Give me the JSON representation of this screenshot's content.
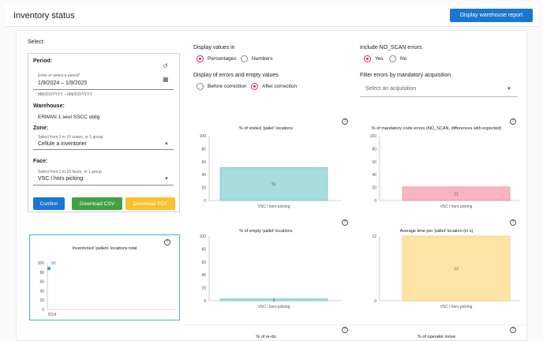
{
  "header": {
    "title": "Inventory status",
    "report_button": "Display warehouse report"
  },
  "filters": {
    "select_label": "Select:",
    "period": {
      "title": "Period:",
      "hint": "Enter or select a period*",
      "value": "1/9/2024 – 1/9/2025",
      "format": "MM/DD/YYYY – MM/DD/YYYY"
    },
    "warehouse": {
      "title": "Warehouse:",
      "value": "ERWAN 1 seul SSCC oblig"
    },
    "zone": {
      "title": "Zone:",
      "hint": "Select from 1 to 10 zones, or 1 group",
      "value": "Cellule a inventorier"
    },
    "face": {
      "title": "Face:",
      "hint": "Select from 1 to 10 faces, or 1 group",
      "value": "VSC l hors picking"
    },
    "buttons": {
      "confirm": "Confirm",
      "csv": "Download CSV",
      "pdf": "Download PDF"
    }
  },
  "options": {
    "display_values": {
      "title": "Display values in",
      "options": [
        "Percentages",
        "Numbers"
      ],
      "selected": 0
    },
    "errors_display": {
      "title": "Display of errors and empty values",
      "options": [
        "Before correction",
        "After correction"
      ],
      "selected": 1
    },
    "no_scan": {
      "title": "Include NO_SCAN errors",
      "options": [
        "Yes",
        "No"
      ],
      "selected": 0
    },
    "acquisition": {
      "title": "Filter errors by mandatory acquisition",
      "placeholder": "Select an acquisition"
    }
  },
  "colors": {
    "primary": "#1976d2",
    "confirm": "#1976d2",
    "csv": "#43a047",
    "pdf": "#fbc02d",
    "radio": "#e91e63"
  },
  "charts": {
    "total": {
      "chart_data": {
        "type": "line",
        "title": "Inventoried 'pallets' locations total",
        "x": [
          "2024"
        ],
        "series": [
          {
            "values": [
              88
            ]
          }
        ],
        "data_labels": [
          "88"
        ],
        "y_ticks": [
          "0",
          "20",
          "40",
          "60",
          "80",
          "100"
        ],
        "ylim": [
          0,
          100
        ],
        "color": "#2196f3"
      }
    },
    "visited": {
      "chart_data": {
        "type": "bar",
        "title": "% of visited 'pallet' locations",
        "categories": [
          "VSC l hors picking"
        ],
        "values": [
          51
        ],
        "data_labels": [
          "51"
        ],
        "y_ticks": [
          "0",
          "20",
          "40",
          "60",
          "80",
          "100"
        ],
        "ylim": [
          0,
          100
        ],
        "color": "#a7dcdc",
        "border": "#5fbcbc"
      }
    },
    "mandatory": {
      "chart_data": {
        "type": "bar",
        "title": "% of mandatory code errors (NO_SCAN, differences with expected)",
        "categories": [
          "VSC l hors picking"
        ],
        "values": [
          21
        ],
        "data_labels": [
          "21"
        ],
        "y_ticks": [
          "0",
          "20",
          "40",
          "60",
          "80",
          "100"
        ],
        "ylim": [
          0,
          100
        ],
        "color": "#f8b4c2",
        "border": "#e87a92"
      }
    },
    "empty": {
      "chart_data": {
        "type": "bar",
        "title": "% of empty 'pallet' locations",
        "categories": [
          "VSC l hors picking"
        ],
        "values": [
          3
        ],
        "data_labels": [
          "3"
        ],
        "y_ticks": [
          "0",
          "20",
          "40",
          "60",
          "80",
          "100"
        ],
        "ylim": [
          0,
          100
        ],
        "color": "#a7dcdc",
        "border": "#5fbcbc"
      }
    },
    "avg_time": {
      "chart_data": {
        "type": "bar",
        "title": "Average time per 'pallet' location (in s)",
        "categories": [
          "VSC l hors picking"
        ],
        "values": [
          12
        ],
        "data_labels": [
          "12"
        ],
        "y_ticks": [
          "0",
          "12"
        ],
        "ylim": [
          0,
          12
        ],
        "color": "#fde4a6",
        "border": "#f2c45a"
      }
    },
    "redo": {
      "title": "% of re-do"
    },
    "operator_move": {
      "title": "% of operator move"
    }
  }
}
